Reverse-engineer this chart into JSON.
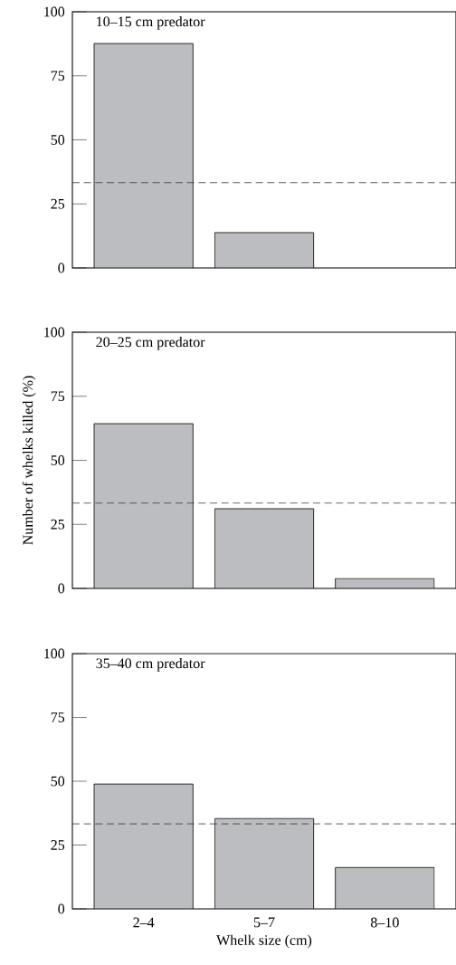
{
  "chart_data": [
    {
      "type": "bar",
      "title": "10–15 cm predator",
      "categories": [
        null,
        null,
        null
      ],
      "values": [
        87.6,
        13.8,
        0
      ],
      "color": "#bcbdc0",
      "ylim": [
        0,
        100
      ],
      "yticks": [
        0,
        25,
        50,
        75,
        100
      ],
      "tick_labels": "y",
      "ref_lines": [
        {
          "axis": "y",
          "value": 33.3,
          "color": "#333333",
          "line_style": "dashed"
        }
      ]
    },
    {
      "type": "bar",
      "title": "20–25 cm predator",
      "ylabel": "Number of whelks killed (%)",
      "categories": [
        null,
        null,
        null
      ],
      "values": [
        64.3,
        31.1,
        3.9
      ],
      "color": "#bcbdc0",
      "ylim": [
        0,
        100
      ],
      "yticks": [
        0,
        25,
        50,
        75,
        100
      ],
      "tick_labels": "y",
      "ref_lines": [
        {
          "axis": "y",
          "value": 33.3,
          "color": "#333333",
          "line_style": "dashed"
        }
      ]
    },
    {
      "type": "bar",
      "title": "35–40 cm predator",
      "xlabel": "Whelk size (cm)",
      "categories": [
        "2–4",
        "5–7",
        "8–10"
      ],
      "values": [
        48.9,
        35.4,
        16.2
      ],
      "color": "#bcbdc0",
      "ylim": [
        0,
        100
      ],
      "yticks": [
        0,
        25,
        50,
        75,
        100
      ],
      "ref_lines": [
        {
          "axis": "y",
          "value": 33.3,
          "color": "#333333",
          "line_style": "dashed"
        }
      ]
    }
  ]
}
